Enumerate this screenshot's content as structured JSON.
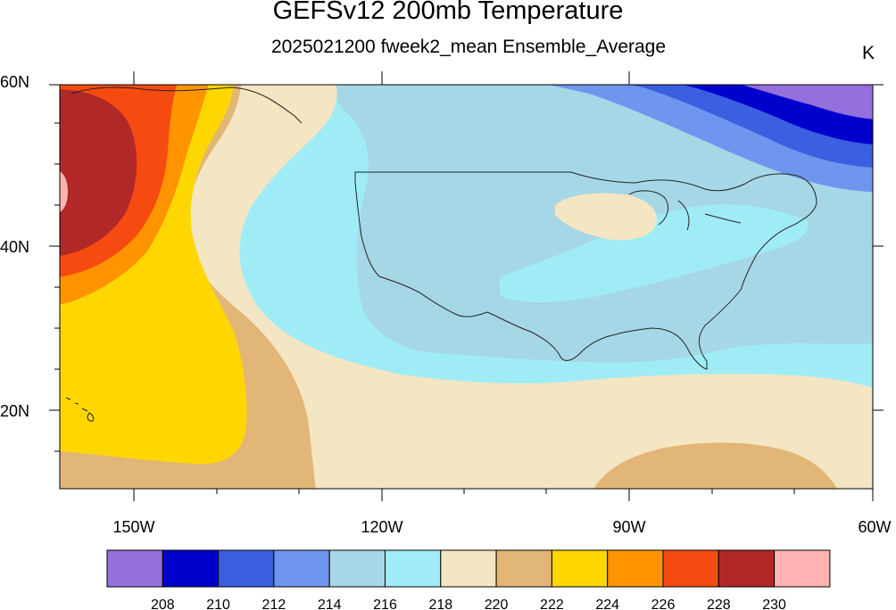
{
  "title": "GEFSv12 200mb Temperature",
  "subtitle": "2025021200 fweek2_mean Ensemble_Average",
  "units": "K",
  "axes": {
    "lat_labels": [
      "60N",
      "40N",
      "20N"
    ],
    "lon_labels": [
      "150W",
      "120W",
      "90W",
      "60W"
    ]
  },
  "colorbar": {
    "colors": [
      "#9370db",
      "#0000cd",
      "#3a5fe0",
      "#6f96ee",
      "#a6d7e6",
      "#a0ecf6",
      "#f4e5c3",
      "#e2b676",
      "#ffd700",
      "#ff9400",
      "#f64b10",
      "#b02828",
      "#ffb2b2"
    ],
    "labels": [
      "208",
      "210",
      "212",
      "214",
      "216",
      "218",
      "220",
      "222",
      "224",
      "226",
      "228",
      "230"
    ]
  }
}
